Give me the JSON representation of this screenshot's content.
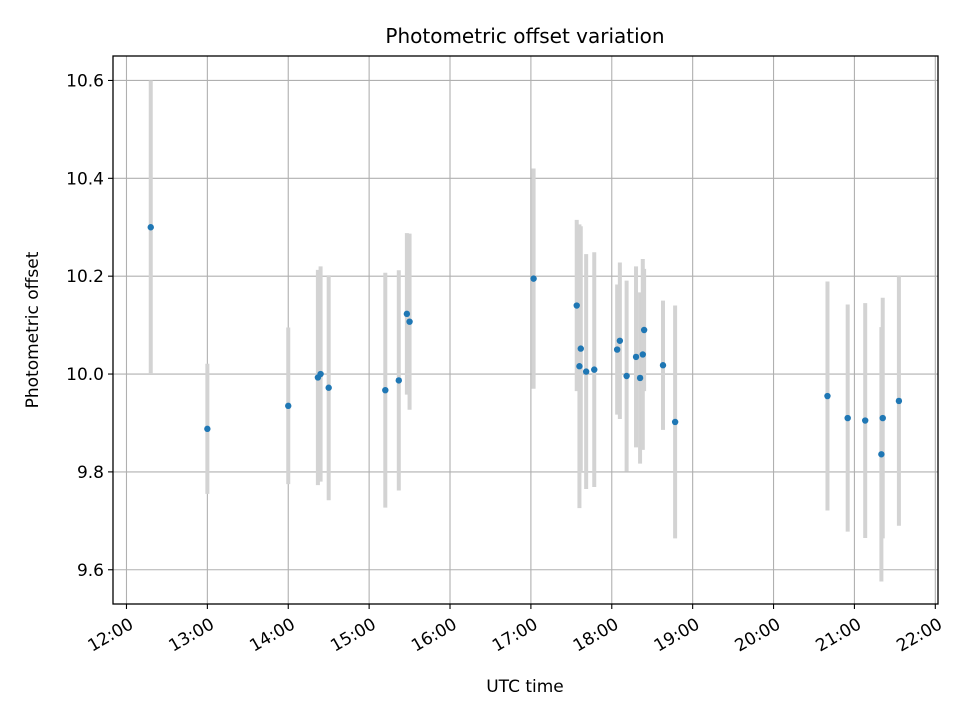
{
  "chart_data": {
    "type": "scatter",
    "title": "Photometric offset variation",
    "xlabel": "UTC time",
    "ylabel": "Photometric offset",
    "x_ticks": [
      "12:00",
      "13:00",
      "14:00",
      "15:00",
      "16:00",
      "17:00",
      "18:00",
      "19:00",
      "20:00",
      "21:00",
      "22:00"
    ],
    "y_ticks": [
      "9.6",
      "9.8",
      "10.0",
      "10.2",
      "10.4",
      "10.6"
    ],
    "xlim": [
      "11:50",
      "22:02"
    ],
    "ylim": [
      9.53,
      10.65
    ],
    "grid": true,
    "colors": {
      "marker": "#1f77b4",
      "errorbar": "#d3d3d3",
      "grid": "#b0b0b0"
    },
    "series": [
      {
        "points": [
          {
            "x": "12:18",
            "y": 10.3,
            "err": 0.3
          },
          {
            "x": "13:00",
            "y": 9.888,
            "err": 0.133
          },
          {
            "x": "14:00",
            "y": 9.935,
            "err": 0.16
          },
          {
            "x": "14:22",
            "y": 9.993,
            "err": 0.22
          },
          {
            "x": "14:24",
            "y": 10.0,
            "err": 0.22
          },
          {
            "x": "14:30",
            "y": 9.972,
            "err": 0.23
          },
          {
            "x": "15:12",
            "y": 9.967,
            "err": 0.24
          },
          {
            "x": "15:22",
            "y": 9.987,
            "err": 0.225
          },
          {
            "x": "15:28",
            "y": 10.123,
            "err": 0.165
          },
          {
            "x": "15:30",
            "y": 10.107,
            "err": 0.18
          },
          {
            "x": "17:02",
            "y": 10.195,
            "err": 0.225
          },
          {
            "x": "17:34",
            "y": 10.14,
            "err": 0.175
          },
          {
            "x": "17:36",
            "y": 10.016,
            "err": 0.29
          },
          {
            "x": "17:37",
            "y": 10.052,
            "err": 0.25
          },
          {
            "x": "17:41",
            "y": 10.005,
            "err": 0.24
          },
          {
            "x": "17:47",
            "y": 10.009,
            "err": 0.24
          },
          {
            "x": "18:04",
            "y": 10.05,
            "err": 0.133
          },
          {
            "x": "18:06",
            "y": 10.068,
            "err": 0.16
          },
          {
            "x": "18:11",
            "y": 9.996,
            "err": 0.195
          },
          {
            "x": "18:18",
            "y": 10.035,
            "err": 0.185
          },
          {
            "x": "18:21",
            "y": 9.992,
            "err": 0.175
          },
          {
            "x": "18:23",
            "y": 10.04,
            "err": 0.195
          },
          {
            "x": "18:24",
            "y": 10.09,
            "err": 0.125
          },
          {
            "x": "18:38",
            "y": 10.018,
            "err": 0.132
          },
          {
            "x": "18:47",
            "y": 9.902,
            "err": 0.238
          },
          {
            "x": "20:40",
            "y": 9.955,
            "err": 0.234
          },
          {
            "x": "20:55",
            "y": 9.91,
            "err": 0.232
          },
          {
            "x": "21:08",
            "y": 9.905,
            "err": 0.24
          },
          {
            "x": "21:20",
            "y": 9.836,
            "err": 0.26
          },
          {
            "x": "21:21",
            "y": 9.91,
            "err": 0.246
          },
          {
            "x": "21:33",
            "y": 9.945,
            "err": 0.255
          }
        ]
      }
    ]
  }
}
